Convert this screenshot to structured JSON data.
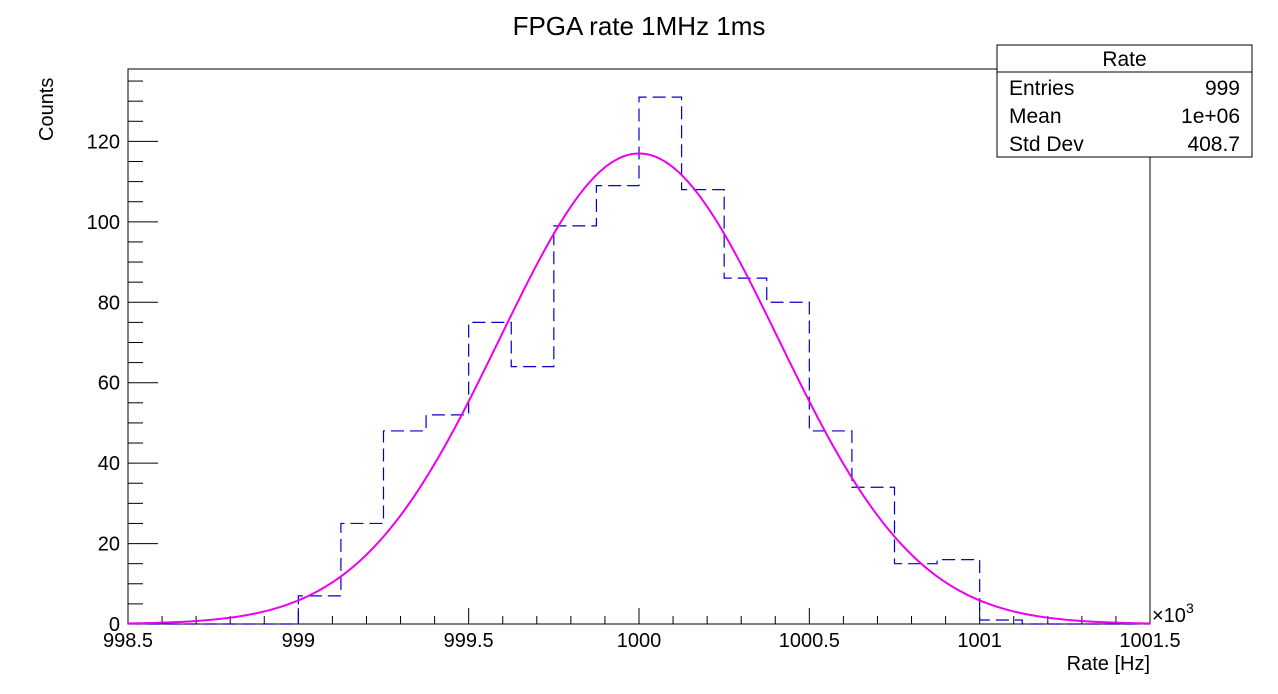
{
  "chart_data": {
    "type": "histogram",
    "title": "FPGA rate 1MHz 1ms",
    "xlabel": "Rate [Hz]",
    "ylabel": "Counts",
    "x_multiplier": "×10",
    "x_multiplier_exp": "3",
    "xlim": [
      998.5,
      1001.5
    ],
    "ylim": [
      0,
      138
    ],
    "x_ticks": [
      998.5,
      999,
      999.5,
      1000,
      1000.5,
      1001,
      1001.5
    ],
    "y_ticks": [
      0,
      20,
      40,
      60,
      80,
      100,
      120
    ],
    "grid": false,
    "bin_edges": [
      998.5,
      998.625,
      998.75,
      998.875,
      999,
      999.125,
      999.25,
      999.375,
      999.5,
      999.625,
      999.75,
      999.875,
      1000,
      1000.125,
      1000.25,
      1000.375,
      1000.5,
      1000.625,
      1000.75,
      1000.875,
      1001,
      1001.125,
      1001.25,
      1001.375,
      1001.5
    ],
    "counts": [
      0,
      0,
      0,
      0,
      7,
      25,
      48,
      52,
      75,
      64,
      99,
      109,
      131,
      108,
      86,
      80,
      48,
      34,
      15,
      16,
      1,
      0,
      0,
      0
    ],
    "histogram_color": "#0000cc",
    "fit": {
      "function": "gaus",
      "constant": 117,
      "mean": 1000,
      "sigma": 0.4087,
      "color": "#ee00ee"
    },
    "stats_box": {
      "title": "Rate",
      "position": "top-right",
      "rows": [
        {
          "label": "Entries",
          "value": "999"
        },
        {
          "label": "Mean",
          "value": "1e+06"
        },
        {
          "label": "Std Dev",
          "value": "408.7"
        }
      ]
    }
  }
}
